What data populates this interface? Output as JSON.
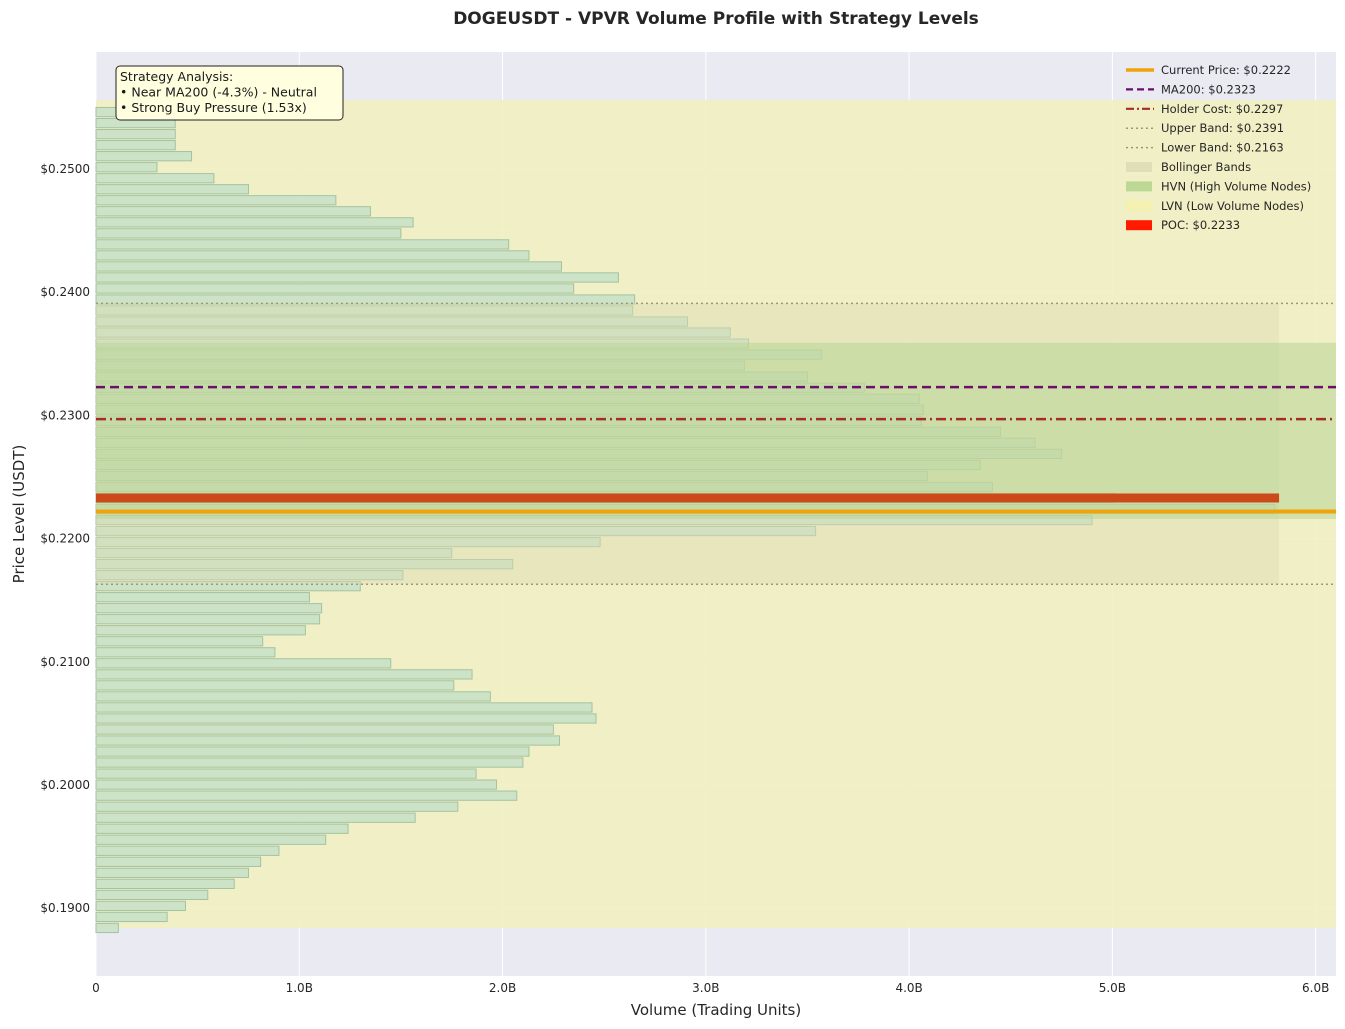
{
  "chart_data": {
    "type": "bar",
    "orientation": "horizontal",
    "title": "DOGEUSDT - VPVR Volume Profile with Strategy Levels",
    "xlabel": "Volume (Trading Units)",
    "ylabel": "Price Level (USDT)",
    "xlim": [
      0,
      6.1
    ],
    "ylim": [
      0.1845,
      0.2595
    ],
    "x_unit": "B",
    "x_ticks": [
      0,
      1,
      2,
      3,
      4,
      5,
      6
    ],
    "x_tick_labels": [
      "0",
      "1.0B",
      "2.0B",
      "3.0B",
      "4.0B",
      "5.0B",
      "6.0B"
    ],
    "y_ticks": [
      0.19,
      0.2,
      0.21,
      0.22,
      0.23,
      0.24,
      0.25
    ],
    "y_tick_labels": [
      "$0.1900",
      "$0.2000",
      "$0.2100",
      "$0.2200",
      "$0.2300",
      "$0.2400",
      "$0.2500"
    ],
    "grid": true,
    "legend_position": "top-right",
    "price_start": 0.1884,
    "price_step": 0.0008949,
    "volumes": [
      0.11,
      0.35,
      0.44,
      0.55,
      0.68,
      0.75,
      0.81,
      0.9,
      1.13,
      1.24,
      1.57,
      1.78,
      2.07,
      1.97,
      1.87,
      2.1,
      2.13,
      2.28,
      2.25,
      2.46,
      2.44,
      1.94,
      1.76,
      1.85,
      1.45,
      0.88,
      0.82,
      1.03,
      1.1,
      1.11,
      1.05,
      1.3,
      1.51,
      2.05,
      1.75,
      2.48,
      3.54,
      4.9,
      5.8,
      5.01,
      4.41,
      4.09,
      4.35,
      4.75,
      4.62,
      4.45,
      4.06,
      4.07,
      4.05,
      3.78,
      3.5,
      3.19,
      3.57,
      3.21,
      3.12,
      2.91,
      2.64,
      2.65,
      2.35,
      2.57,
      2.29,
      2.13,
      2.03,
      1.5,
      1.56,
      1.35,
      1.18,
      0.75,
      0.58,
      0.3,
      0.47,
      0.39,
      0.39,
      0.39,
      0.3
    ],
    "levels": {
      "current_price": 0.2222,
      "ma200": 0.2323,
      "holder_cost": 0.2297,
      "upper_band": 0.2391,
      "lower_band": 0.2163,
      "poc": 0.2233,
      "hvn_range": [
        0.2216,
        0.2359
      ],
      "lvn_range": [
        0.1884,
        0.2556
      ],
      "bollinger_xmax": 5.82,
      "poc_xmax": 5.82
    },
    "legend": [
      {
        "label": "Current Price: $0.2222",
        "color": "#f0a30a",
        "style": "solid-thick"
      },
      {
        "label": "MA200: $0.2323",
        "color": "#6a0f6a",
        "style": "dashed"
      },
      {
        "label": "Holder Cost: $0.2297",
        "color": "#a52a2a",
        "style": "dashdot"
      },
      {
        "label": "Upper Band: $0.2391",
        "color": "#9a9a7a",
        "style": "dotted"
      },
      {
        "label": "Lower Band: $0.2163",
        "color": "#9a9a7a",
        "style": "dotted"
      },
      {
        "label": "Bollinger Bands",
        "color": "#dcdcb4",
        "style": "patch"
      },
      {
        "label": "HVN (High Volume Nodes)",
        "color": "#b4d28c",
        "style": "patch"
      },
      {
        "label": "LVN (Low Volume Nodes)",
        "color": "#f5f0aa",
        "style": "patch"
      },
      {
        "label": "POC: $0.2233",
        "color": "#ff1a00",
        "style": "patch-solid"
      }
    ],
    "annotation": {
      "lines": [
        "Strategy Analysis:",
        "• Near MA200 (-4.3%) - Neutral",
        "• Strong Buy Pressure (1.53x)"
      ]
    },
    "colors": {
      "background": "#eaeaf2",
      "bar_fill": "#cce3c9",
      "bar_edge": "#9fc09f",
      "lvn": "#f2f0c0",
      "hvn": "#b8d596",
      "bollinger": "#dcdcb4",
      "poc": "#cc4a1a",
      "current": "#f0a30a",
      "ma200": "#6a0f6a",
      "holder": "#a52a2a",
      "band": "#9a9a7a",
      "annot_bg": "#ffffe0"
    }
  }
}
